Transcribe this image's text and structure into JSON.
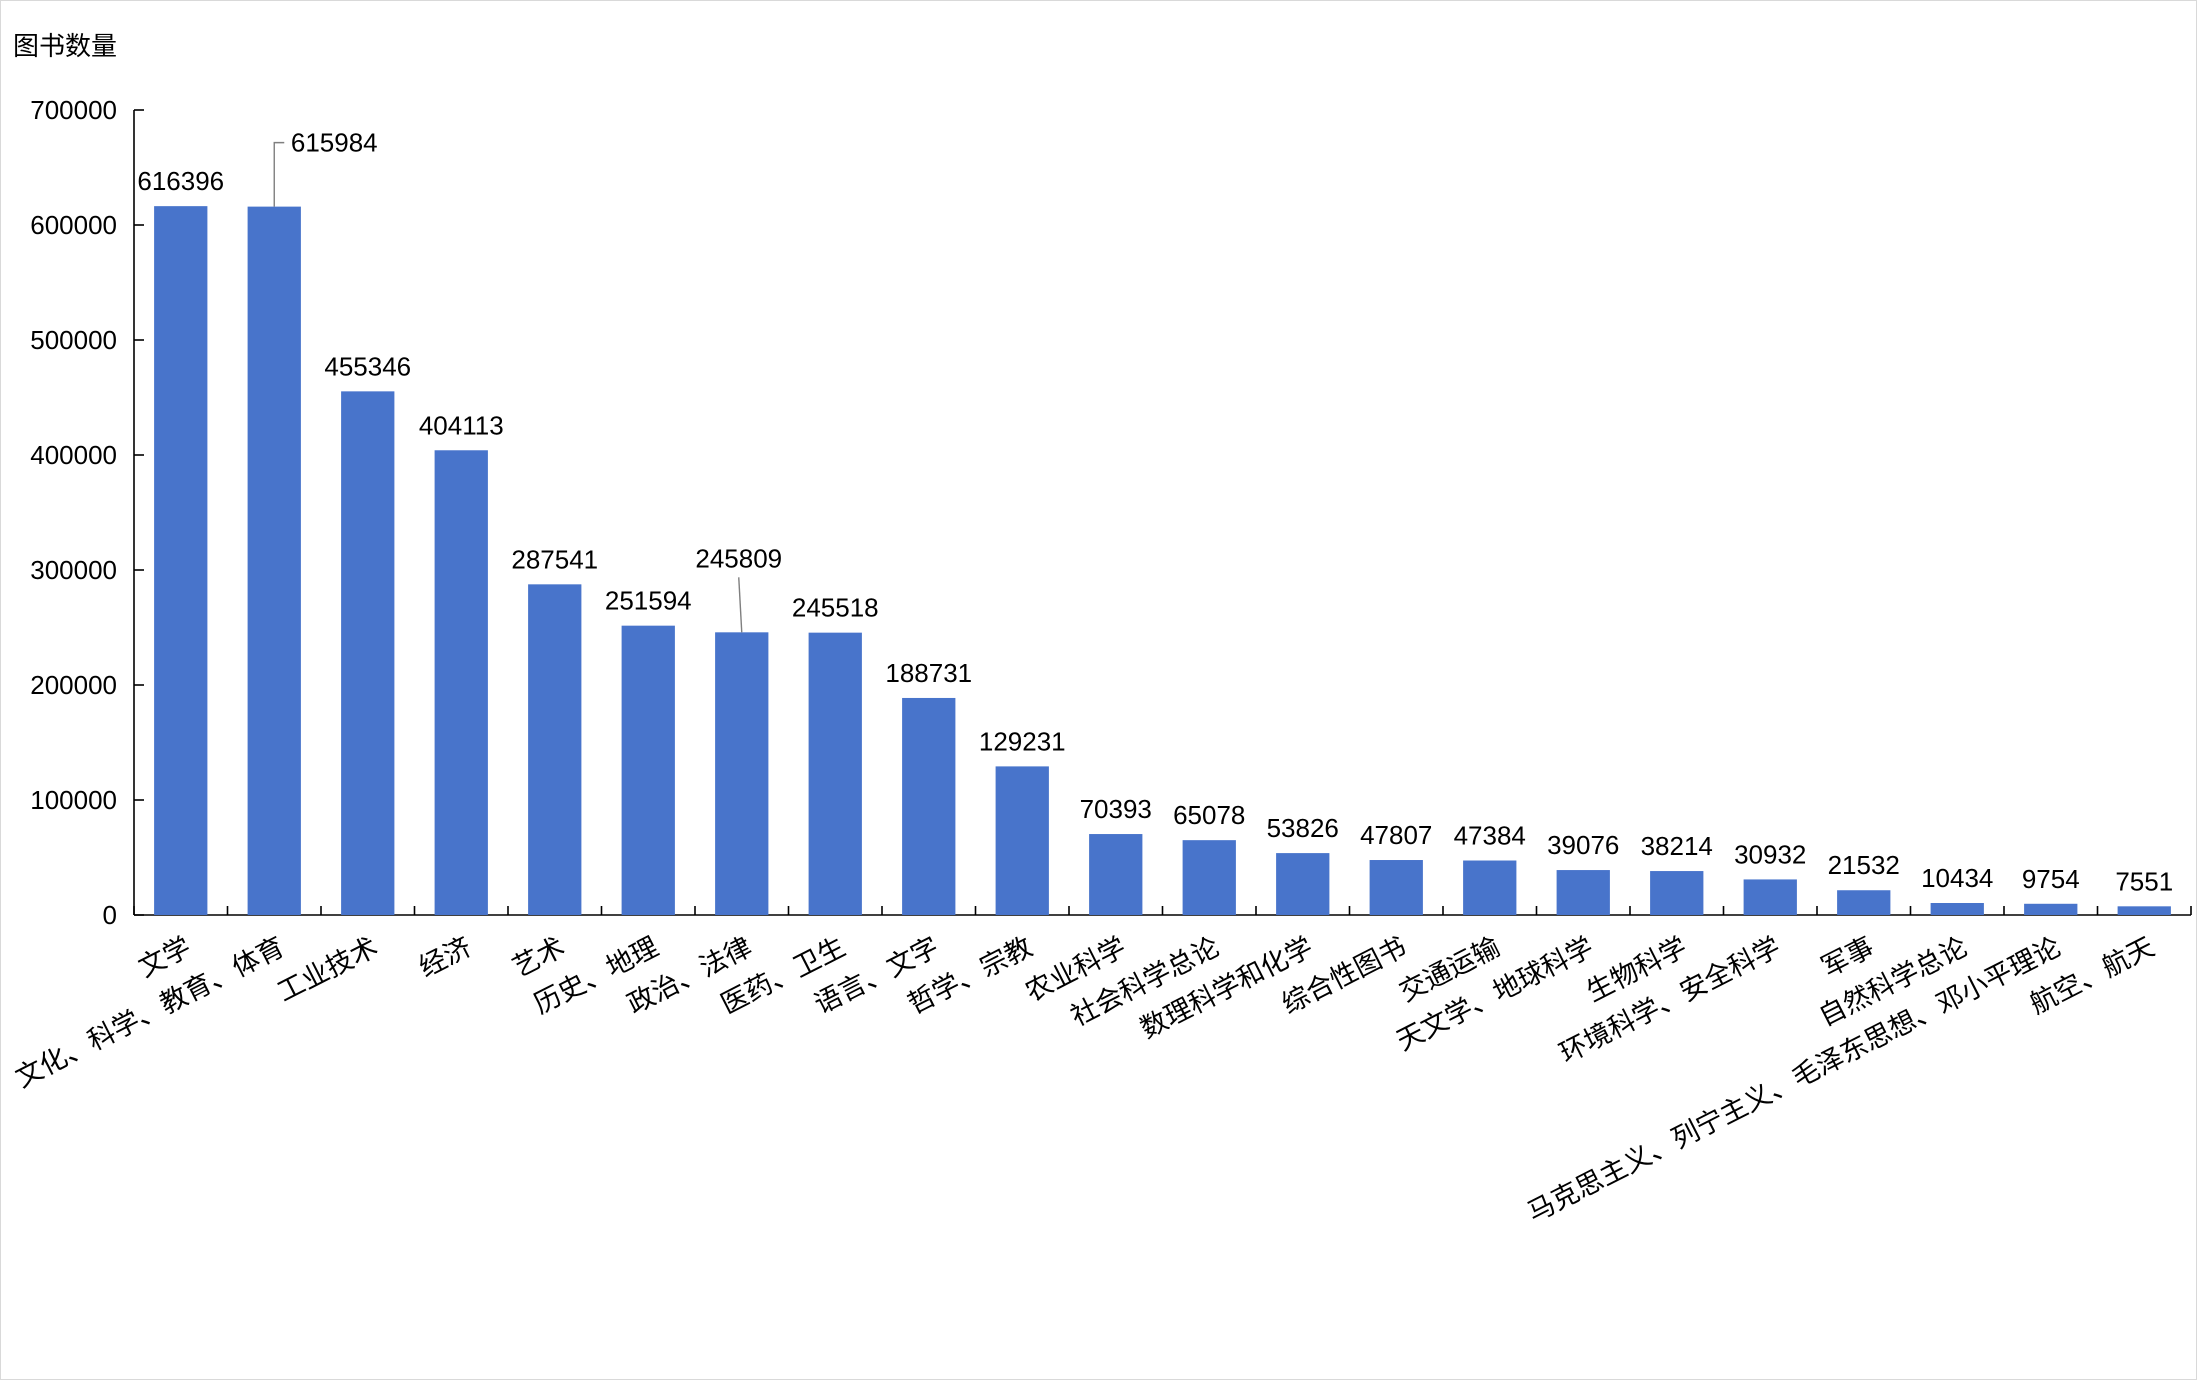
{
  "chart_data": {
    "type": "bar",
    "ylabel": "图书数量",
    "xlabel": "",
    "ylim": [
      0,
      700000
    ],
    "yticks": [
      0,
      100000,
      200000,
      300000,
      400000,
      500000,
      600000,
      700000
    ],
    "grid": false,
    "legend": "none",
    "bar_color": "#4874cb",
    "categories": [
      "文学",
      "文化、科学、教育、体育",
      "工业技术",
      "经济",
      "艺术",
      "历史、地理",
      "政治、法律",
      "医药、卫生",
      "语言、文字",
      "哲学、宗教",
      "农业科学",
      "社会科学总论",
      "数理科学和化学",
      "综合性图书",
      "交通运输",
      "天文学、地球科学",
      "生物科学",
      "环境科学、安全科学",
      "军事",
      "自然科学总论",
      "马克思主义、列宁主义、毛泽东思想、邓小平理论",
      "航空、航天"
    ],
    "values": [
      616396,
      615984,
      455346,
      404113,
      287541,
      251594,
      245809,
      245518,
      188731,
      129231,
      70393,
      65078,
      53826,
      47807,
      47384,
      39076,
      38214,
      30932,
      21532,
      10434,
      9754,
      7551
    ],
    "data_labels": [
      "616396",
      "615984",
      "455346",
      "404113",
      "287541",
      "251594",
      "245809",
      "245518",
      "188731",
      "129231",
      "70393",
      "65078",
      "53826",
      "47807",
      "47384",
      "39076",
      "38214",
      "30932",
      "21532",
      "10434",
      "9754",
      "7551"
    ]
  }
}
